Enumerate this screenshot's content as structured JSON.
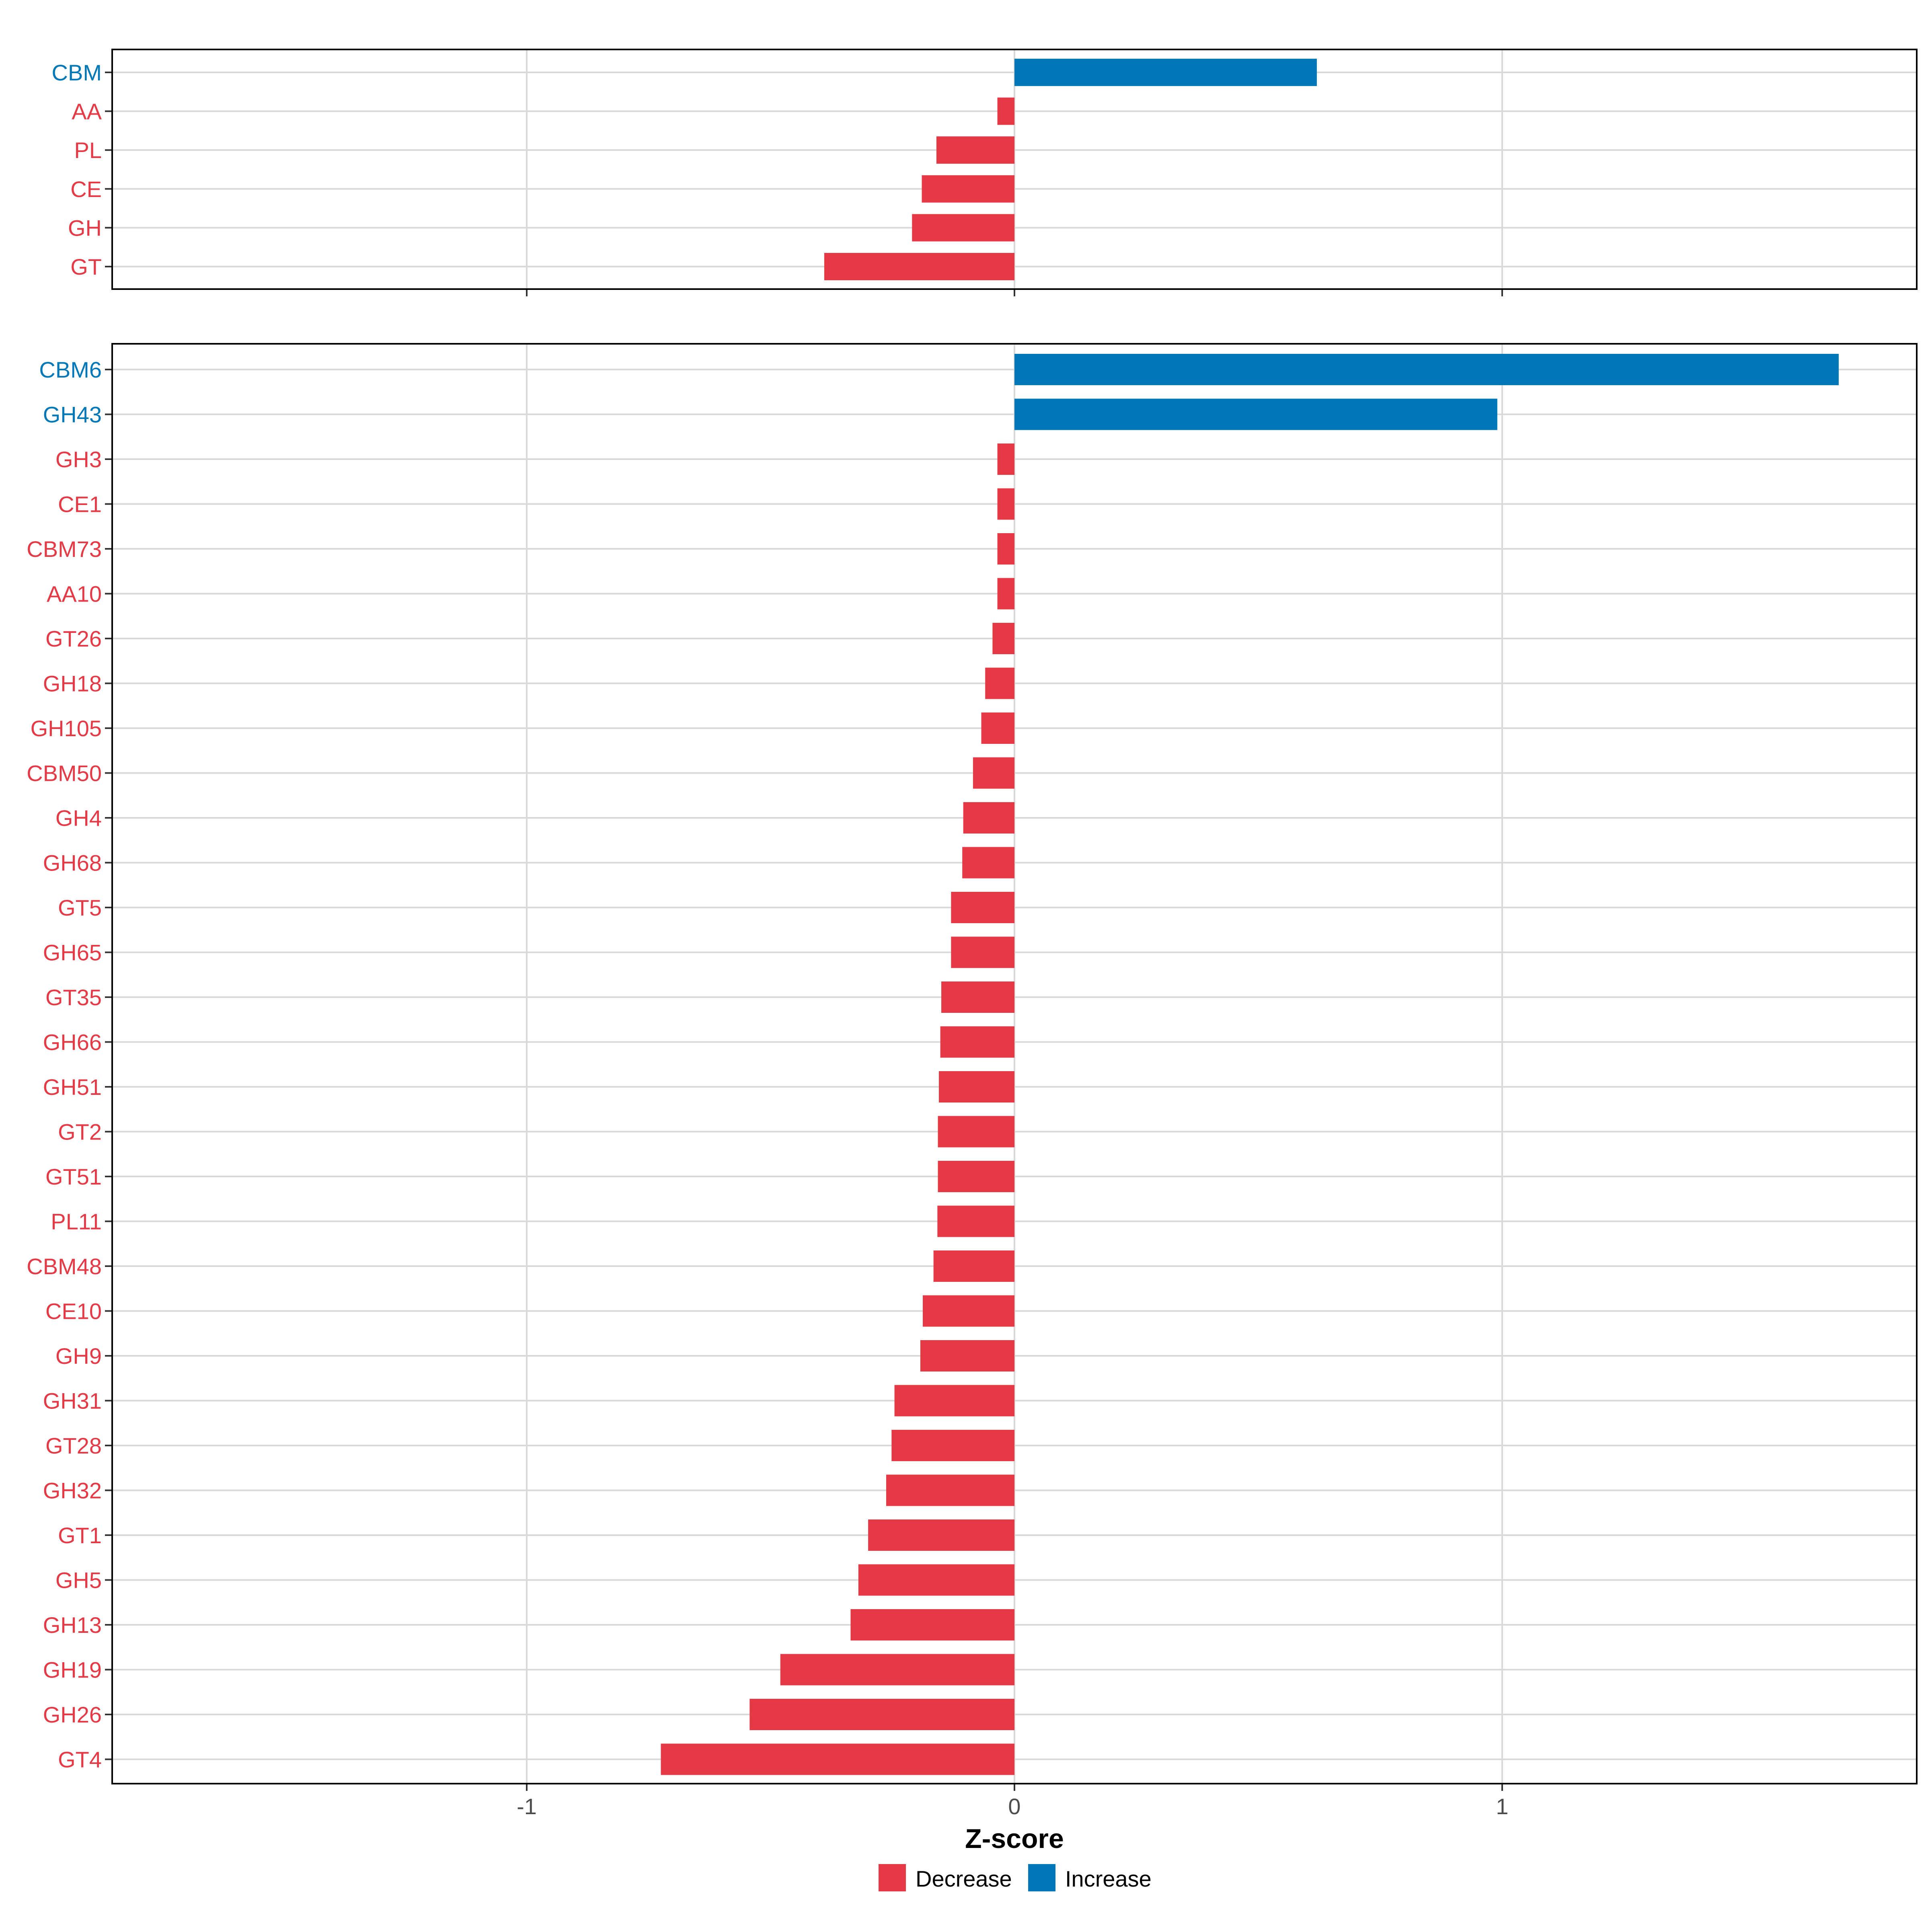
{
  "colors": {
    "decrease": "#E63946",
    "increase": "#0077B6",
    "grid": "#d9d9d9",
    "panel_border": "#000000",
    "tick_text": "#4d4d4d"
  },
  "legend": {
    "placement": "bottom",
    "items": [
      {
        "label": "Decrease",
        "color": "#E63946"
      },
      {
        "label": "Increase",
        "color": "#0077B6"
      }
    ]
  },
  "chart_data": [
    {
      "type": "bar",
      "orientation": "horizontal",
      "panel": "top",
      "categories": [
        "CBM",
        "AA",
        "PL",
        "CE",
        "GH",
        "GT"
      ],
      "values": [
        0.62,
        -0.035,
        -0.16,
        -0.19,
        -0.21,
        -0.39
      ],
      "direction": [
        "Increase",
        "Decrease",
        "Decrease",
        "Decrease",
        "Decrease",
        "Decrease"
      ],
      "xlim": [
        -1.85,
        1.85
      ],
      "xticks": [
        -1,
        0,
        1
      ],
      "grid": true,
      "title": "",
      "xlabel": "",
      "ylabel": ""
    },
    {
      "type": "bar",
      "orientation": "horizontal",
      "panel": "bottom",
      "categories": [
        "CBM6",
        "GH43",
        "GH3",
        "CE1",
        "CBM73",
        "AA10",
        "GT26",
        "GH18",
        "GH105",
        "CBM50",
        "GH4",
        "GH68",
        "GT5",
        "GH65",
        "GT35",
        "GH66",
        "GH51",
        "GT2",
        "GT51",
        "PL11",
        "CBM48",
        "CE10",
        "GH9",
        "GH31",
        "GT28",
        "GH32",
        "GT1",
        "GH5",
        "GH13",
        "GH19",
        "GH26",
        "GT4"
      ],
      "values": [
        1.69,
        0.99,
        -0.035,
        -0.035,
        -0.035,
        -0.035,
        -0.045,
        -0.06,
        -0.068,
        -0.085,
        -0.105,
        -0.107,
        -0.13,
        -0.13,
        -0.15,
        -0.152,
        -0.155,
        -0.157,
        -0.157,
        -0.158,
        -0.166,
        -0.188,
        -0.193,
        -0.246,
        -0.252,
        -0.263,
        -0.3,
        -0.32,
        -0.336,
        -0.48,
        -0.543,
        -0.725
      ],
      "direction": [
        "Increase",
        "Increase",
        "Decrease",
        "Decrease",
        "Decrease",
        "Decrease",
        "Decrease",
        "Decrease",
        "Decrease",
        "Decrease",
        "Decrease",
        "Decrease",
        "Decrease",
        "Decrease",
        "Decrease",
        "Decrease",
        "Decrease",
        "Decrease",
        "Decrease",
        "Decrease",
        "Decrease",
        "Decrease",
        "Decrease",
        "Decrease",
        "Decrease",
        "Decrease",
        "Decrease",
        "Decrease",
        "Decrease",
        "Decrease",
        "Decrease",
        "Decrease"
      ],
      "xlim": [
        -1.85,
        1.85
      ],
      "xticks": [
        -1,
        0,
        1
      ],
      "grid": true,
      "title": "",
      "xlabel": "Z-score",
      "ylabel": ""
    }
  ]
}
